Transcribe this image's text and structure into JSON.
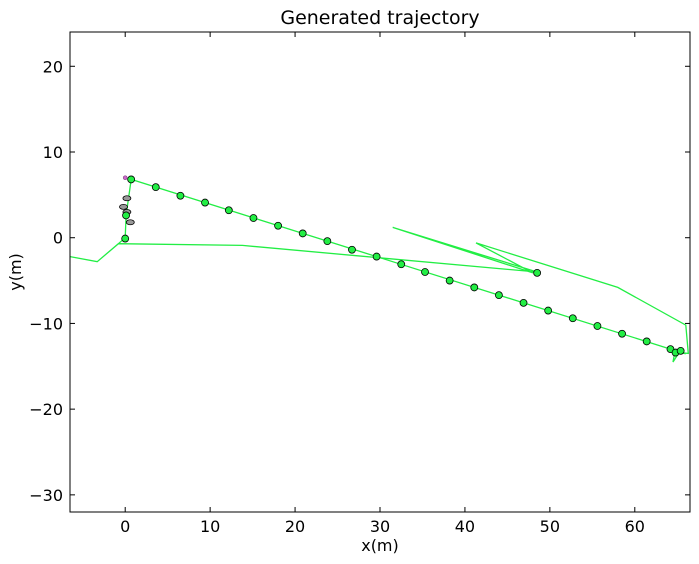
{
  "chart_data": {
    "type": "line",
    "title": "Generated trajectory",
    "xlabel": "x(m)",
    "ylabel": "y(m)",
    "xlim": [
      -6.5,
      66.5
    ],
    "ylim": [
      -32,
      24
    ],
    "xticks": [
      0,
      10,
      20,
      30,
      40,
      50,
      60
    ],
    "yticks": [
      -30,
      -20,
      -10,
      0,
      10,
      20
    ],
    "ytick_labels": [
      "−30",
      "−20",
      "−10",
      "0",
      "10",
      "20"
    ],
    "grid": false,
    "colors": {
      "path": "#22ee44",
      "marker_fill": "#22ee44",
      "marker_edge": "#000000",
      "start_marker": "#cc66cc",
      "pose_marker": "#999999"
    },
    "series": [
      {
        "kind": "line",
        "points": [
          [
            -6.5,
            -2.2
          ],
          [
            -3.3,
            -2.8
          ],
          [
            -0.8,
            -0.7
          ],
          [
            13.8,
            -0.9
          ],
          [
            27.2,
            -2.1
          ],
          [
            48.5,
            -4.0
          ],
          [
            31.5,
            1.2
          ],
          [
            48.0,
            -4.1
          ],
          [
            41.3,
            -0.6
          ],
          [
            58.0,
            -5.8
          ],
          [
            66.0,
            -10.2
          ],
          [
            66.3,
            -13.5
          ],
          [
            65.2,
            -13.4
          ],
          [
            64.5,
            -14.5
          ],
          [
            64.7,
            -13.4
          ],
          [
            65.3,
            -12.9
          ],
          [
            65.8,
            -13.5
          ],
          [
            65.0,
            -13.3
          ],
          [
            64.2,
            -13.0
          ]
        ]
      },
      {
        "kind": "line",
        "points": [
          [
            -0.8,
            -0.7
          ],
          [
            0.0,
            0.0
          ],
          [
            0.1,
            2.6
          ],
          [
            0.7,
            6.8
          ],
          [
            64.2,
            -13.0
          ]
        ]
      },
      {
        "kind": "markers",
        "points": [
          [
            0.0,
            -0.1
          ],
          [
            0.1,
            2.6
          ],
          [
            0.7,
            6.8
          ],
          [
            3.6,
            5.9
          ],
          [
            6.5,
            4.9
          ],
          [
            9.4,
            4.1
          ],
          [
            12.2,
            3.2
          ],
          [
            15.1,
            2.3
          ],
          [
            18.0,
            1.4
          ],
          [
            20.9,
            0.5
          ],
          [
            23.8,
            -0.4
          ],
          [
            26.7,
            -1.4
          ],
          [
            29.6,
            -2.2
          ],
          [
            32.5,
            -3.1
          ],
          [
            35.3,
            -4.0
          ],
          [
            38.2,
            -5.0
          ],
          [
            41.1,
            -5.8
          ],
          [
            44.0,
            -6.7
          ],
          [
            46.9,
            -7.6
          ],
          [
            49.8,
            -8.5
          ],
          [
            52.7,
            -9.4
          ],
          [
            55.6,
            -10.3
          ],
          [
            58.5,
            -11.2
          ],
          [
            61.4,
            -12.1
          ],
          [
            64.2,
            -13.0
          ],
          [
            64.8,
            -13.4
          ],
          [
            65.4,
            -13.2
          ],
          [
            48.5,
            -4.1
          ]
        ]
      }
    ],
    "start_point": [
      0.0,
      7.0
    ],
    "pose_markers": [
      [
        0.2,
        4.6
      ],
      [
        -0.2,
        3.6
      ],
      [
        0.2,
        3.0
      ],
      [
        0.6,
        1.8
      ]
    ]
  }
}
